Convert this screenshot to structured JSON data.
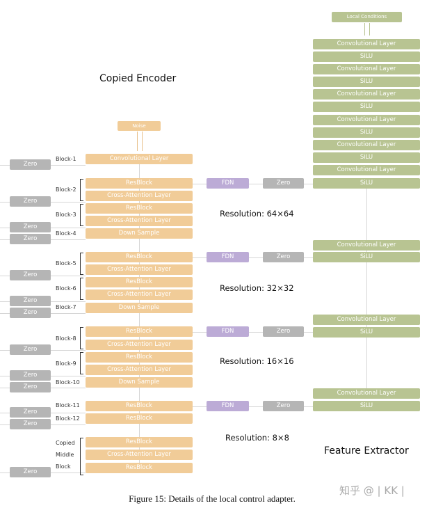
{
  "titles": {
    "encoder": "Copied Encoder",
    "extractor": "Feature Extractor"
  },
  "inputs": {
    "noise": "Noise",
    "local_conditions": "Local Conditions"
  },
  "encoder_layers": [
    "Convolutional Layer",
    "ResBlock",
    "Cross-Attention Layer",
    "ResBlock",
    "Cross-Attention Layer",
    "Down Sample",
    "ResBlock",
    "Cross-Attention Layer",
    "ResBlock",
    "Cross-Attention Layer",
    "Down Sample",
    "ResBlock",
    "Cross-Attention Layer",
    "ResBlock",
    "Cross-Attention Layer",
    "Down Sample",
    "ResBlock",
    "ResBlock",
    "ResBlock",
    "Cross-Attention Layer",
    "ResBlock"
  ],
  "block_labels": [
    "Block-1",
    "Block-2",
    "Block-3",
    "Block-4",
    "Block-5",
    "Block-6",
    "Block-7",
    "Block-8",
    "Block-9",
    "Block-10",
    "Block-11",
    "Block-12",
    "Copied",
    "Middle",
    "Block"
  ],
  "zero_label": "Zero",
  "fdn_label": "FDN",
  "extractor_layers": [
    "Convolutional Layer",
    "SiLU",
    "Convolutional Layer",
    "SiLU",
    "Convolutional Layer",
    "SiLU",
    "Convolutional Layer",
    "SiLU",
    "Convolutional Layer",
    "SiLU",
    "Convolutional Layer",
    "SiLU",
    "Convolutional Layer",
    "SiLU",
    "Convolutional Layer",
    "SiLU",
    "Convolutional Layer",
    "SiLU"
  ],
  "resolutions": [
    "Resolution: 64×64",
    "Resolution: 32×32",
    "Resolution: 16×16",
    "Resolution: 8×8"
  ],
  "caption": "Figure 15: Details of the local control adapter.",
  "watermark": "知乎 @ | KK |",
  "colors": {
    "encoder": "#f1cc98",
    "extractor": "#b8c492",
    "fdn": "#bcabd6",
    "zero": "#b5b5b5"
  }
}
